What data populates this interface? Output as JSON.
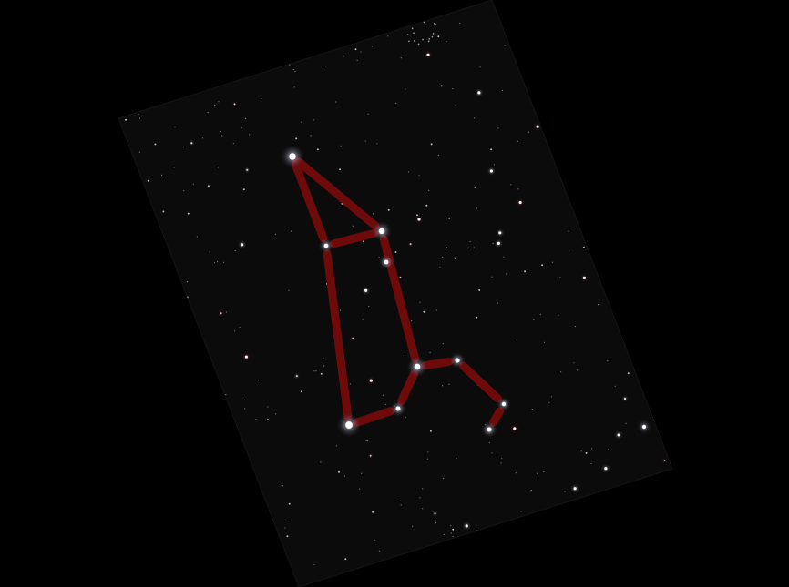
{
  "colors": {
    "background": "#000000",
    "plate": "#0b0b0b",
    "plate_edge": "#161616",
    "line": "#6e0a0a",
    "star": "#ffffff",
    "star_halo": "#d8d8ff",
    "star_tint": "#a81818"
  },
  "constellation": {
    "stars": [
      {
        "id": "s1",
        "mag": 1.8
      },
      {
        "id": "s2",
        "mag": 1.4
      },
      {
        "id": "s3",
        "mag": 0.8
      },
      {
        "id": "s4",
        "mag": 0.8
      },
      {
        "id": "s5",
        "mag": 1.5
      },
      {
        "id": "s6",
        "mag": 0.9
      },
      {
        "id": "s7",
        "mag": 0.7
      },
      {
        "id": "s8",
        "mag": 0.9
      },
      {
        "id": "s9",
        "mag": 0.9
      },
      {
        "id": "s10",
        "mag": 1.9
      }
    ],
    "links": [
      [
        "s1",
        "s2"
      ],
      [
        "s1",
        "s3"
      ],
      [
        "s3",
        "s2"
      ],
      [
        "s2",
        "s5"
      ],
      [
        "s3",
        "s10"
      ],
      [
        "s10",
        "s8"
      ],
      [
        "s8",
        "s5"
      ],
      [
        "s5",
        "s6"
      ],
      [
        "s6",
        "s7"
      ],
      [
        "s7",
        "s9"
      ]
    ]
  }
}
